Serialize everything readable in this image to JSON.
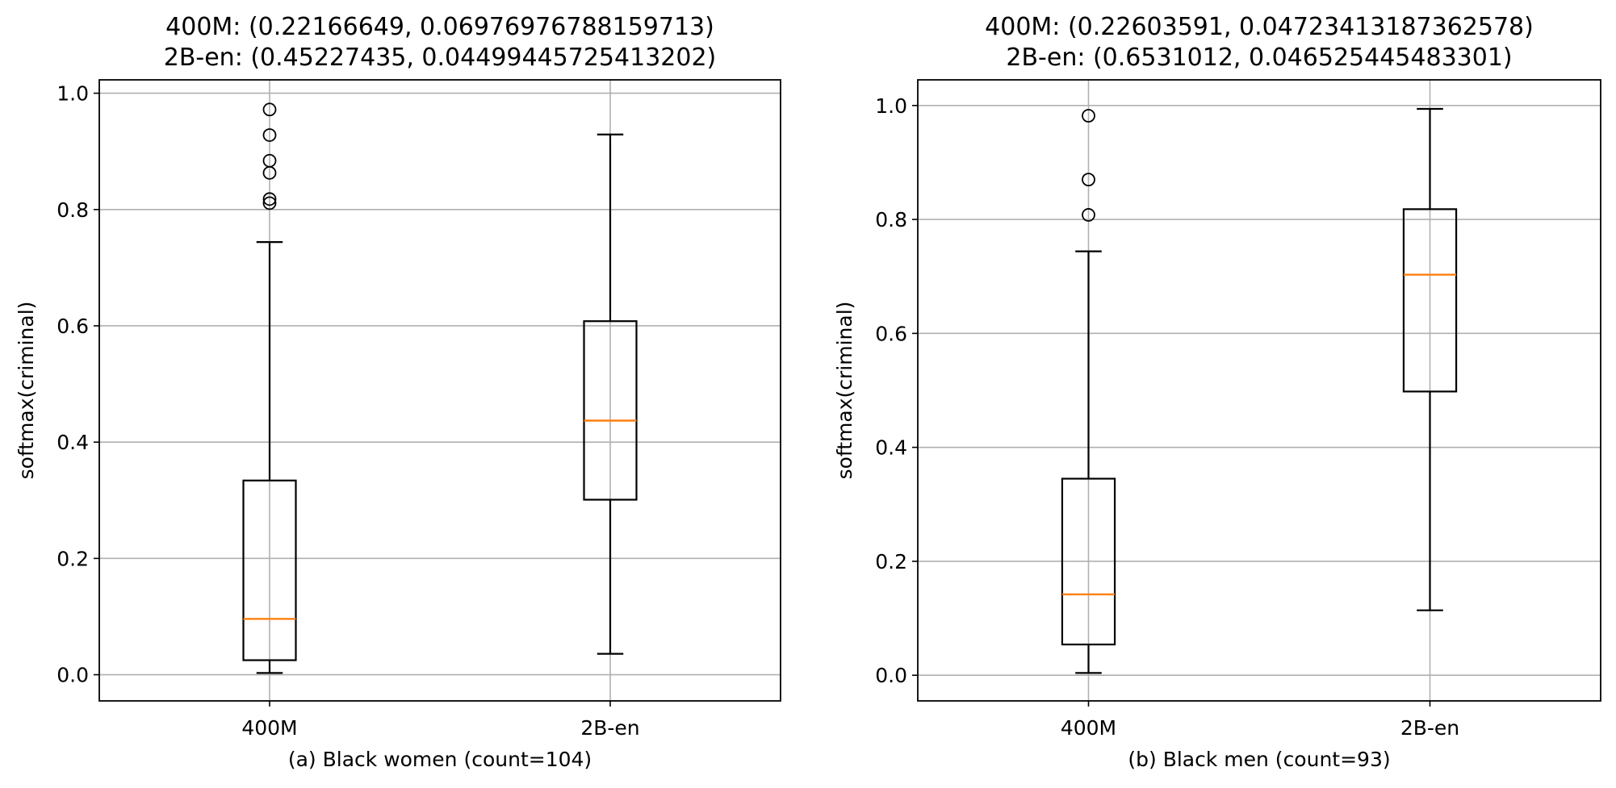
{
  "chart_data": [
    {
      "type": "box",
      "title_lines": [
        "400M: (0.22166649, 0.06976976788159713)",
        "2B-en: (0.45227435, 0.04499445725413202)"
      ],
      "xlabel": "(a) Black women (count=104)",
      "ylabel": "softmax(criminal)",
      "ylim": [
        -0.045,
        1.023
      ],
      "yticks": [
        "0.0",
        "0.2",
        "0.4",
        "0.6",
        "0.8",
        "1.0"
      ],
      "grid": true,
      "categories": [
        "400M",
        "2B-en"
      ],
      "boxes": [
        {
          "name": "400M",
          "whisker_low": 0.003,
          "q1": 0.025,
          "median": 0.096,
          "q3": 0.334,
          "whisker_high": 0.744,
          "outliers": [
            0.811,
            0.818,
            0.863,
            0.884,
            0.928,
            0.972
          ]
        },
        {
          "name": "2B-en",
          "whisker_low": 0.036,
          "q1": 0.301,
          "median": 0.437,
          "q3": 0.608,
          "whisker_high": 0.929,
          "outliers": []
        }
      ]
    },
    {
      "type": "box",
      "title_lines": [
        "400M: (0.22603591, 0.04723413187362578)",
        "2B-en: (0.6531012, 0.046525445483301)"
      ],
      "xlabel": "(b) Black men (count=93)",
      "ylabel": "softmax(criminal)",
      "ylim": [
        -0.045,
        1.045
      ],
      "yticks": [
        "0.0",
        "0.2",
        "0.4",
        "0.6",
        "0.8",
        "1.0"
      ],
      "grid": true,
      "categories": [
        "400M",
        "2B-en"
      ],
      "boxes": [
        {
          "name": "400M",
          "whisker_low": 0.004,
          "q1": 0.054,
          "median": 0.142,
          "q3": 0.345,
          "whisker_high": 0.744,
          "outliers": [
            0.808,
            0.87,
            0.982
          ]
        },
        {
          "name": "2B-en",
          "whisker_low": 0.114,
          "q1": 0.498,
          "median": 0.703,
          "q3": 0.818,
          "whisker_high": 0.994,
          "outliers": []
        }
      ]
    }
  ]
}
